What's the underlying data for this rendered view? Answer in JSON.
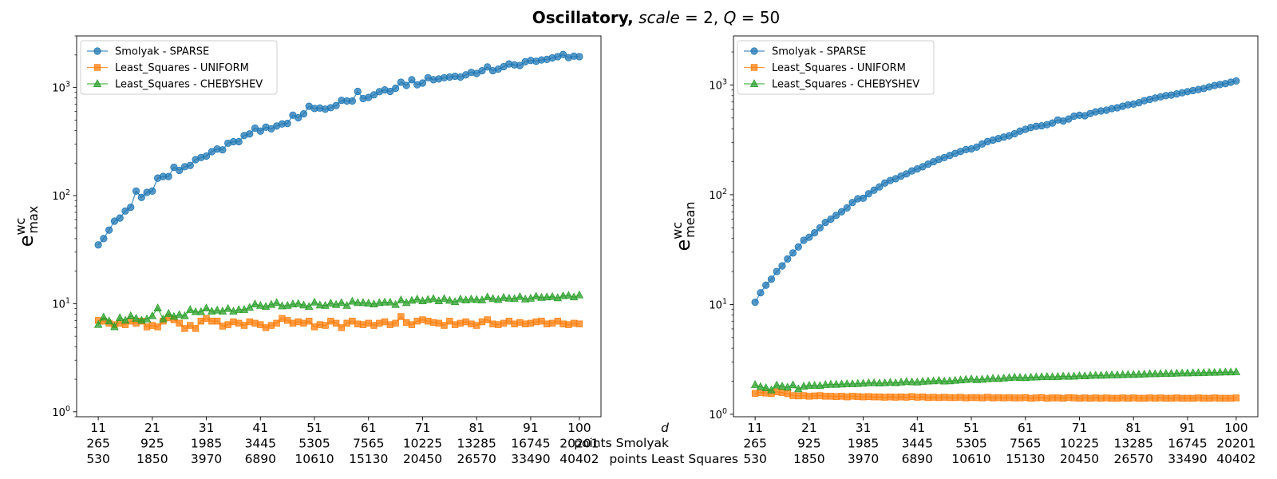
{
  "title": {
    "bold": "Oscillatory,",
    "rest_prefix": " ",
    "scale_var": "scale",
    "scale_eq": " = 2, ",
    "q_var": "Q",
    "q_eq": " = 50"
  },
  "x_info": {
    "row_labels": [
      "d",
      "points Smolyak",
      "points Least Squares"
    ],
    "ticks_d": [
      "11",
      "21",
      "31",
      "41",
      "51",
      "61",
      "71",
      "81",
      "91",
      "100"
    ],
    "ticks_smolyak": [
      "265",
      "925",
      "1985",
      "3445",
      "5305",
      "7565",
      "10225",
      "13285",
      "16745",
      "20201"
    ],
    "ticks_ls": [
      "530",
      "1850",
      "3970",
      "6890",
      "10610",
      "15130",
      "20450",
      "26570",
      "33490",
      "40402"
    ]
  },
  "colors": {
    "Smolyak - SPARSE": "#1f77b4",
    "Least_Squares - UNIFORM": "#ff7f0e",
    "Least_Squares - CHEBYSHEV": "#2ca02c"
  },
  "chart_data": [
    {
      "type": "line",
      "ylabel_base": "e",
      "ylabel_sup": "wc",
      "ylabel_sub": "max",
      "yscale": "log",
      "ylim": [
        0.9,
        3000
      ],
      "yticks": [
        1,
        10,
        100,
        1000
      ],
      "ytick_labels": [
        {
          "base": "10",
          "exp": "0"
        },
        {
          "base": "10",
          "exp": "1"
        },
        {
          "base": "10",
          "exp": "2"
        },
        {
          "base": "10",
          "exp": "3"
        }
      ],
      "x_start": 11,
      "x_end": 100,
      "xticks": [
        11,
        21,
        31,
        41,
        51,
        61,
        71,
        81,
        91,
        100
      ],
      "legend_position": "top-left",
      "series": [
        {
          "name": "Smolyak - SPARSE",
          "marker": "circle",
          "values": [
            35,
            40,
            48,
            58,
            62,
            72,
            78,
            110,
            96,
            107,
            110,
            145,
            150,
            150,
            183,
            171,
            185,
            190,
            215,
            225,
            232,
            255,
            270,
            265,
            305,
            315,
            315,
            360,
            372,
            420,
            395,
            430,
            415,
            440,
            460,
            465,
            555,
            525,
            570,
            670,
            640,
            645,
            630,
            650,
            680,
            760,
            750,
            750,
            920,
            790,
            810,
            855,
            915,
            950,
            920,
            985,
            1120,
            1045,
            1180,
            1060,
            1100,
            1230,
            1180,
            1200,
            1230,
            1250,
            1270,
            1250,
            1310,
            1380,
            1350,
            1430,
            1550,
            1430,
            1480,
            1560,
            1650,
            1620,
            1600,
            1730,
            1780,
            1750,
            1800,
            1820,
            1880,
            1930,
            2020,
            1890,
            1950,
            1930
          ]
        },
        {
          "name": "Least_Squares - UNIFORM",
          "marker": "square",
          "values": [
            7.0,
            6.9,
            6.6,
            6.4,
            6.6,
            6.4,
            6.9,
            6.6,
            6.9,
            6.1,
            6.3,
            6.1,
            6.9,
            7.4,
            7.1,
            6.6,
            5.9,
            6.3,
            5.9,
            6.9,
            7.3,
            6.9,
            6.9,
            6.2,
            6.4,
            6.8,
            6.6,
            6.3,
            6.8,
            6.6,
            6.4,
            6.0,
            6.3,
            6.6,
            7.3,
            7.0,
            6.6,
            6.8,
            6.6,
            6.9,
            6.1,
            6.4,
            6.3,
            6.9,
            6.6,
            6.0,
            6.6,
            6.9,
            6.5,
            6.4,
            6.6,
            6.3,
            6.6,
            6.8,
            6.4,
            6.6,
            7.6,
            6.7,
            6.4,
            6.9,
            7.1,
            6.9,
            6.7,
            6.6,
            6.3,
            6.9,
            6.4,
            6.6,
            6.8,
            6.5,
            6.3,
            6.8,
            7.1,
            6.5,
            6.4,
            6.6,
            6.9,
            6.5,
            6.7,
            6.5,
            6.6,
            6.8,
            6.9,
            6.5,
            6.6,
            6.9,
            6.5,
            6.4,
            6.6,
            6.5
          ]
        },
        {
          "name": "Least_Squares - CHEBYSHEV",
          "marker": "triangle",
          "values": [
            6.4,
            7.5,
            6.9,
            6.1,
            7.4,
            7.0,
            7.7,
            7.3,
            7.0,
            7.2,
            7.7,
            9.1,
            7.2,
            8.1,
            7.6,
            7.9,
            7.7,
            8.8,
            8.4,
            8.4,
            9.1,
            8.5,
            8.7,
            8.5,
            9.0,
            8.5,
            8.8,
            8.8,
            9.2,
            9.9,
            9.6,
            9.4,
            9.8,
            10.2,
            9.5,
            9.6,
            9.9,
            10.0,
            9.7,
            9.4,
            10.3,
            9.7,
            9.6,
            10.1,
            9.8,
            10.2,
            9.6,
            10.5,
            10.2,
            10.2,
            10.1,
            9.9,
            10.2,
            10.3,
            10.3,
            9.8,
            10.8,
            10.2,
            10.7,
            11.0,
            10.6,
            10.9,
            11.1,
            10.6,
            11.1,
            10.7,
            10.4,
            11.0,
            10.8,
            11.0,
            10.9,
            10.8,
            11.5,
            11.1,
            10.9,
            11.4,
            11.2,
            11.1,
            11.6,
            11.0,
            11.2,
            11.7,
            11.4,
            11.5,
            11.6,
            11.3,
            11.8,
            11.9,
            11.5,
            12.0
          ]
        }
      ]
    },
    {
      "type": "line",
      "ylabel_base": "e",
      "ylabel_sup": "wc",
      "ylabel_sub": "mean",
      "yscale": "log",
      "ylim": [
        0.95,
        2800
      ],
      "yticks": [
        1,
        10,
        100,
        1000
      ],
      "ytick_labels": [
        {
          "base": "10",
          "exp": "0"
        },
        {
          "base": "10",
          "exp": "1"
        },
        {
          "base": "10",
          "exp": "2"
        },
        {
          "base": "10",
          "exp": "3"
        }
      ],
      "x_start": 11,
      "x_end": 100,
      "xticks": [
        11,
        21,
        31,
        41,
        51,
        61,
        71,
        81,
        91,
        100
      ],
      "legend_position": "top-left",
      "series": [
        {
          "name": "Smolyak - SPARSE",
          "marker": "circle",
          "values": [
            10.5,
            12.8,
            15.0,
            17.0,
            20.0,
            22.5,
            26.0,
            29.5,
            33.5,
            38.5,
            41.0,
            45.0,
            50.0,
            56.0,
            60.0,
            65.0,
            70.0,
            76.0,
            85.0,
            92.0,
            93.0,
            102.0,
            110.0,
            118.0,
            128.0,
            135.0,
            140.0,
            148.0,
            155.0,
            165.0,
            172.0,
            180.0,
            190.0,
            200.0,
            210.0,
            218.0,
            228.0,
            238.0,
            248.0,
            258.0,
            262.0,
            272.0,
            290.0,
            305.0,
            315.0,
            325.0,
            335.0,
            345.0,
            360.0,
            380.0,
            395.0,
            410.0,
            420.0,
            425.0,
            435.0,
            450.0,
            480.0,
            470.0,
            490.0,
            520.0,
            530.0,
            525.0,
            550.0,
            570.0,
            580.0,
            590.0,
            610.0,
            620.0,
            640.0,
            660.0,
            670.0,
            690.0,
            720.0,
            740.0,
            760.0,
            780.0,
            800.0,
            810.0,
            830.0,
            850.0,
            870.0,
            890.0,
            910.0,
            930.0,
            960.0,
            990.0,
            1010.0,
            1030.0,
            1060.0,
            1090.0
          ]
        },
        {
          "name": "Least_Squares - UNIFORM",
          "marker": "square",
          "values": [
            1.55,
            1.58,
            1.56,
            1.55,
            1.6,
            1.58,
            1.54,
            1.48,
            1.47,
            1.48,
            1.46,
            1.47,
            1.48,
            1.46,
            1.46,
            1.45,
            1.46,
            1.44,
            1.46,
            1.45,
            1.44,
            1.45,
            1.44,
            1.44,
            1.43,
            1.44,
            1.43,
            1.44,
            1.43,
            1.45,
            1.43,
            1.44,
            1.42,
            1.43,
            1.42,
            1.43,
            1.42,
            1.42,
            1.43,
            1.41,
            1.42,
            1.42,
            1.41,
            1.43,
            1.41,
            1.42,
            1.41,
            1.42,
            1.41,
            1.41,
            1.42,
            1.4,
            1.41,
            1.42,
            1.4,
            1.41,
            1.41,
            1.4,
            1.42,
            1.41,
            1.4,
            1.41,
            1.4,
            1.41,
            1.4,
            1.41,
            1.4,
            1.4,
            1.41,
            1.4,
            1.41,
            1.4,
            1.4,
            1.41,
            1.4,
            1.41,
            1.4,
            1.4,
            1.41,
            1.4,
            1.4,
            1.4,
            1.41,
            1.4,
            1.4,
            1.41,
            1.4,
            1.4,
            1.4,
            1.41
          ]
        },
        {
          "name": "Least_Squares - CHEBYSHEV",
          "marker": "triangle",
          "values": [
            1.86,
            1.78,
            1.74,
            1.66,
            1.84,
            1.8,
            1.76,
            1.85,
            1.7,
            1.8,
            1.83,
            1.83,
            1.82,
            1.86,
            1.87,
            1.87,
            1.88,
            1.89,
            1.89,
            1.9,
            1.91,
            1.93,
            1.93,
            1.92,
            1.93,
            1.95,
            1.93,
            1.96,
            1.98,
            1.97,
            1.96,
            1.99,
            2.0,
            2.01,
            2.03,
            2.0,
            2.01,
            2.03,
            2.05,
            2.07,
            2.09,
            2.06,
            2.08,
            2.1,
            2.12,
            2.11,
            2.13,
            2.15,
            2.17,
            2.16,
            2.15,
            2.17,
            2.18,
            2.19,
            2.2,
            2.19,
            2.2,
            2.22,
            2.21,
            2.22,
            2.24,
            2.23,
            2.25,
            2.26,
            2.26,
            2.27,
            2.28,
            2.28,
            2.29,
            2.3,
            2.3,
            2.31,
            2.32,
            2.33,
            2.33,
            2.34,
            2.35,
            2.35,
            2.36,
            2.37,
            2.37,
            2.38,
            2.38,
            2.39,
            2.4,
            2.4,
            2.41,
            2.42,
            2.42,
            2.43
          ]
        }
      ]
    }
  ]
}
